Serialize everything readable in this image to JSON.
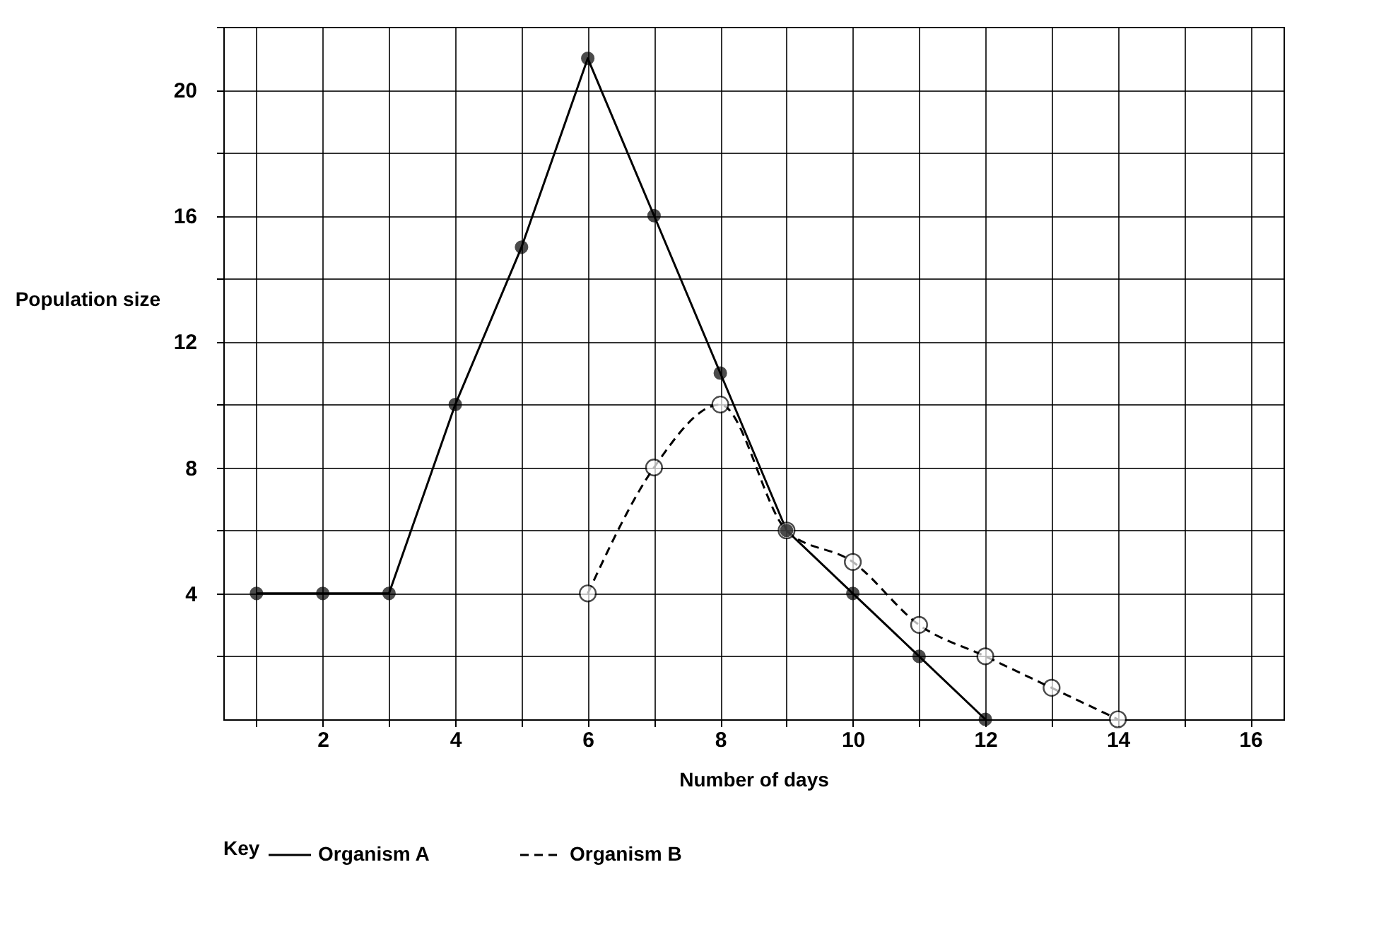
{
  "chart_data": {
    "type": "line",
    "xlabel": "Number of days",
    "ylabel": "Population size",
    "legend_title": "Key",
    "legend": "bottom",
    "grid": true,
    "marker": "circle",
    "xlim": [
      0.5,
      16.5
    ],
    "ylim": [
      0,
      22
    ],
    "xticks": [
      {
        "value": 1,
        "label": null
      },
      2,
      {
        "value": 3,
        "label": null
      },
      4,
      {
        "value": 5,
        "label": null
      },
      6,
      {
        "value": 7,
        "label": null
      },
      8,
      {
        "value": 9,
        "label": null
      },
      10,
      {
        "value": 11,
        "label": null
      },
      12,
      {
        "value": 13,
        "label": null
      },
      14,
      {
        "value": 15,
        "label": null
      },
      16
    ],
    "yticks": [
      {
        "value": 2,
        "label": null
      },
      4,
      {
        "value": 6,
        "label": null
      },
      8,
      {
        "value": 10,
        "label": null
      },
      12,
      {
        "value": 14,
        "label": null
      },
      16,
      {
        "value": 18,
        "label": null
      },
      20,
      {
        "value": 22,
        "label": null
      }
    ],
    "series": [
      {
        "name": "Organism A",
        "color": "#000000",
        "line_style": "solid",
        "x": [
          1,
          2,
          3,
          4,
          5,
          6,
          7,
          8,
          9,
          10,
          11,
          12
        ],
        "values": [
          4,
          4,
          4,
          10,
          15,
          21,
          16,
          11,
          6,
          4,
          2,
          0
        ]
      },
      {
        "name": "Organism B",
        "color": "#000000",
        "line_style": "dashed",
        "x": [
          6,
          7,
          8,
          9,
          10,
          11,
          12,
          13,
          14
        ],
        "values": [
          4,
          8,
          10,
          6,
          5,
          3,
          2,
          1,
          0
        ]
      }
    ]
  }
}
